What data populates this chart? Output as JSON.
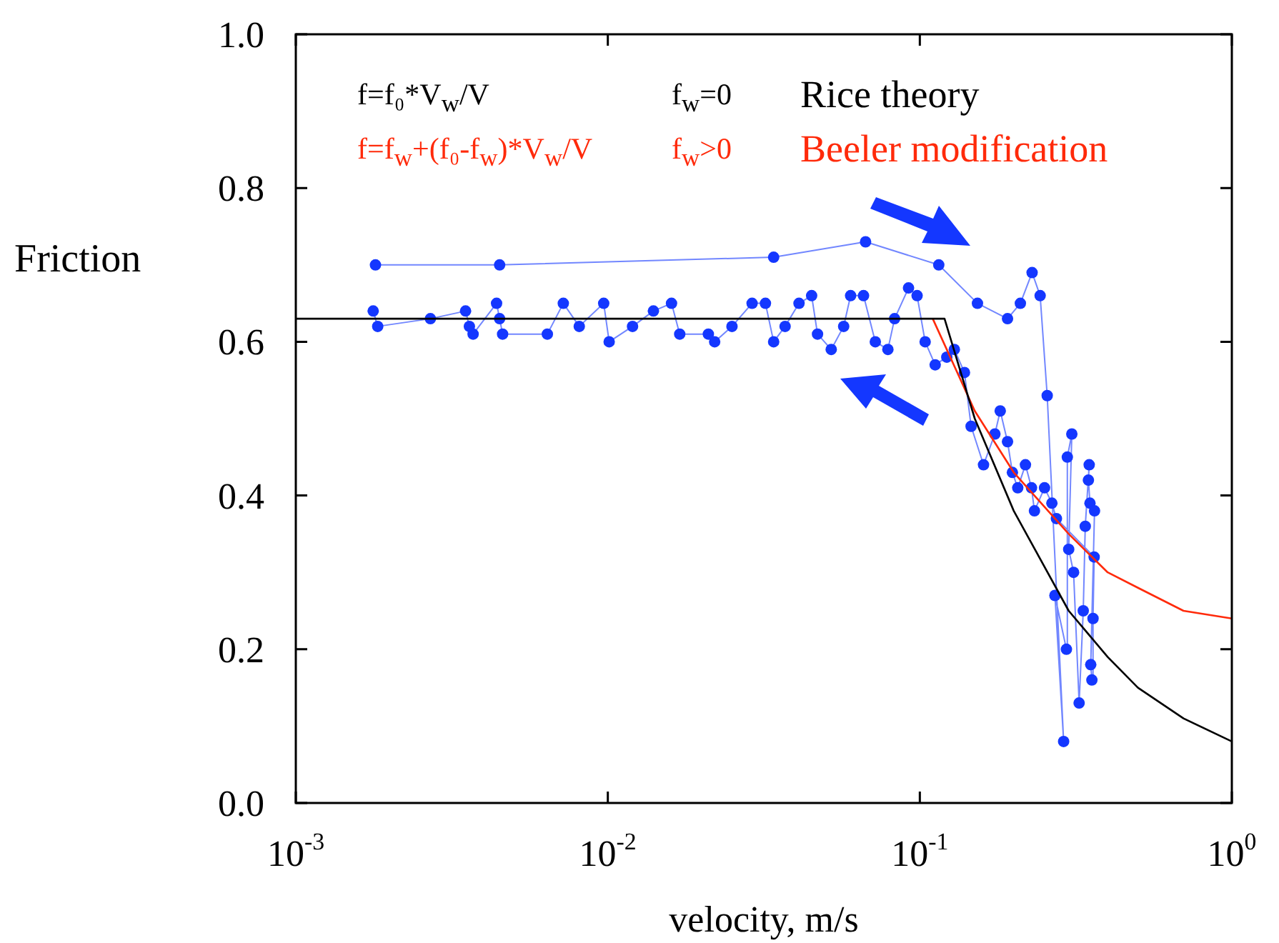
{
  "chart_data": {
    "type": "line",
    "xlabel": "velocity, m/s",
    "ylabel": "Friction",
    "log": "x",
    "xlim": [
      0.001,
      1
    ],
    "ylim": [
      0,
      1
    ],
    "xticks": [
      {
        "value": 0.001,
        "label": "10$^{-3}$"
      },
      {
        "value": 0.01,
        "label": "10$^{-2}$"
      },
      {
        "value": 0.1,
        "label": "10$^{-1}$"
      },
      {
        "value": 1,
        "label": "10$^{0}$"
      }
    ],
    "yticks": [
      {
        "value": 0,
        "label": "0.0"
      },
      {
        "value": 0.2,
        "label": "0.2"
      },
      {
        "value": 0.4,
        "label": "0.4"
      },
      {
        "value": 0.6,
        "label": "0.6"
      },
      {
        "value": 0.8,
        "label": "0.8"
      },
      {
        "value": 1,
        "label": "1.0"
      }
    ],
    "grid": false,
    "legend": "top",
    "line_style": "solid",
    "annotations": [
      "f=f₀*V$_{w}$/V",
      "f$_{w}$=0",
      "f=f$_{w}$+(f₀-f$_{w}$)*V$_{w}$/V",
      "f$_{w}$>0"
    ],
    "series": [
      {
        "color": "#1437ff",
        "marker": "circle",
        "x": [
          0.0018,
          0.0045,
          0.034,
          0.067,
          0.115,
          0.153,
          0.191,
          0.21,
          0.229,
          0.243,
          0.256,
          0.289,
          0.271,
          0.295,
          0.297,
          0.307,
          0.3,
          0.311,
          0.324,
          0.334,
          0.339,
          0.349,
          0.347,
          0.351,
          0.363,
          0.353,
          0.356,
          0.359,
          0.362,
          0.274,
          0.265,
          0.251,
          0.233,
          0.228,
          0.218,
          0.206,
          0.198,
          0.191,
          0.181,
          0.174,
          0.16,
          0.146,
          0.139,
          0.129,
          0.122,
          0.112,
          0.104,
          0.098,
          0.092,
          0.083,
          0.079,
          0.072,
          0.066,
          0.06,
          0.057,
          0.052,
          0.047,
          0.045,
          0.041,
          0.037,
          0.034,
          0.032,
          0.029,
          0.025,
          0.022,
          0.021,
          0.017,
          0.016,
          0.014,
          0.012,
          0.0101,
          0.0097,
          0.0081,
          0.0072,
          0.0064,
          0.0046,
          0.0045,
          0.0044,
          0.0037,
          0.0036,
          0.0035,
          0.0027,
          0.00183,
          0.00177
        ],
        "values": [
          0.7,
          0.7,
          0.71,
          0.73,
          0.7,
          0.65,
          0.63,
          0.65,
          0.69,
          0.66,
          0.53,
          0.08,
          0.27,
          0.2,
          0.45,
          0.48,
          0.33,
          0.3,
          0.13,
          0.25,
          0.36,
          0.44,
          0.42,
          0.39,
          0.38,
          0.18,
          0.16,
          0.24,
          0.32,
          0.37,
          0.39,
          0.41,
          0.38,
          0.41,
          0.44,
          0.41,
          0.43,
          0.47,
          0.51,
          0.48,
          0.44,
          0.49,
          0.56,
          0.59,
          0.58,
          0.57,
          0.6,
          0.66,
          0.67,
          0.63,
          0.59,
          0.6,
          0.66,
          0.66,
          0.62,
          0.59,
          0.61,
          0.66,
          0.65,
          0.62,
          0.6,
          0.65,
          0.65,
          0.62,
          0.6,
          0.61,
          0.61,
          0.65,
          0.64,
          0.62,
          0.6,
          0.65,
          0.62,
          0.65,
          0.61,
          0.61,
          0.63,
          0.65,
          0.61,
          0.62,
          0.64,
          0.63,
          0.62,
          0.64
        ]
      },
      {
        "name": "Rice theory",
        "type": "line",
        "color": "#000000",
        "marker": "none",
        "x": [
          0.001,
          0.12,
          0.15,
          0.2,
          0.3,
          0.4,
          0.5,
          0.7,
          1
        ],
        "values": [
          0.63,
          0.63,
          0.5,
          0.38,
          0.25,
          0.19,
          0.15,
          0.11,
          0.08
        ]
      },
      {
        "name": "Beeler modification",
        "type": "line",
        "color": "#ff2a0a",
        "marker": "none",
        "x": [
          0.11,
          0.15,
          0.2,
          0.3,
          0.4,
          0.5,
          0.7,
          1
        ],
        "values": [
          0.63,
          0.51,
          0.43,
          0.35,
          0.3,
          0.28,
          0.25,
          0.24
        ]
      }
    ]
  }
}
